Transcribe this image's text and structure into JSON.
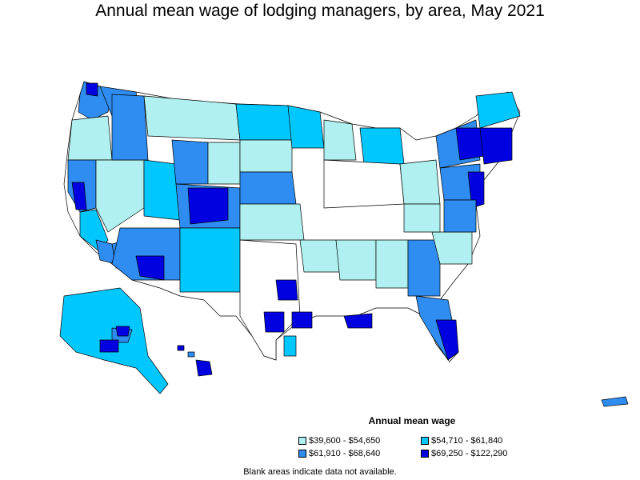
{
  "title": "Annual mean wage of lodging managers, by area, May 2021",
  "legend": {
    "title": "Annual mean wage",
    "items": [
      {
        "label": "$39,600 - $54,650",
        "color": "#b0f0f0"
      },
      {
        "label": "$54,710 - $61,840",
        "color": "#00c8ff"
      },
      {
        "label": "$61,910 - $68,640",
        "color": "#2f8cf0"
      },
      {
        "label": "$69,250 - $122,290",
        "color": "#0000e0"
      }
    ]
  },
  "note": "Blank areas indicate data not available."
}
